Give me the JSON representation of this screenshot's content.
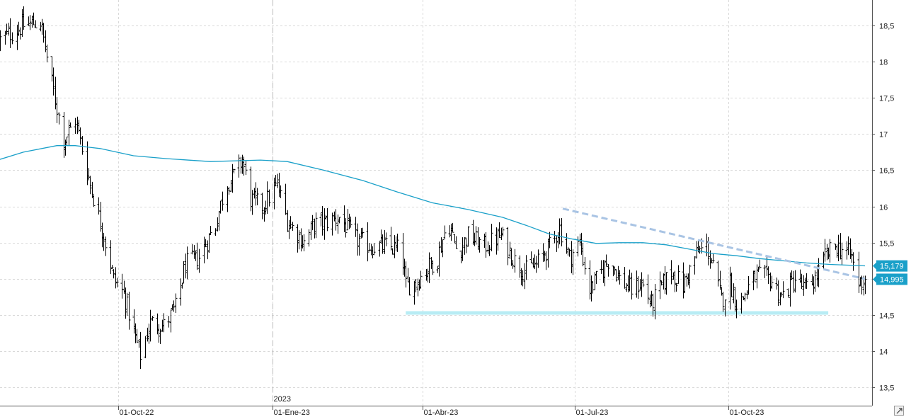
{
  "chart_data": {
    "type": "ohlc",
    "y_ticks": [
      "13,5",
      "14",
      "14,5",
      "15",
      "15,5",
      "16",
      "16,5",
      "17",
      "17,5",
      "18",
      "18,5"
    ],
    "y_tick_values": [
      13.5,
      14,
      14.5,
      15,
      15.5,
      16,
      16.5,
      17,
      17.5,
      18,
      18.5
    ],
    "x_ticks": [
      "01-Oct-22",
      "01-Ene-23",
      "01-Abr-23",
      "01-Jul-23",
      "01-Oct-23"
    ],
    "x_tick_dates": [
      "2022-10-01",
      "2023-01-01",
      "2023-04-01",
      "2023-07-01",
      "2023-10-01"
    ],
    "year_marker": {
      "label": "2023",
      "date": "2023-01-01"
    },
    "x_range": [
      "2022-07-22",
      "2023-12-22"
    ],
    "ylim": [
      13.25,
      18.85
    ],
    "grid": true,
    "series": [
      {
        "kind": "price-bars",
        "color": "#000000",
        "anchors": [
          [
            "2022-07-22",
            18.3
          ],
          [
            "2022-08-05",
            18.5
          ],
          [
            "2022-08-15",
            18.55
          ],
          [
            "2022-08-22",
            17.7
          ],
          [
            "2022-08-29",
            16.9
          ],
          [
            "2022-09-05",
            17.2
          ],
          [
            "2022-09-14",
            16.3
          ],
          [
            "2022-09-22",
            15.6
          ],
          [
            "2022-09-28",
            15.0
          ],
          [
            "2022-10-04",
            14.8
          ],
          [
            "2022-10-10",
            14.25
          ],
          [
            "2022-10-14",
            13.95
          ],
          [
            "2022-10-20",
            14.4
          ],
          [
            "2022-10-28",
            14.35
          ],
          [
            "2022-11-04",
            14.6
          ],
          [
            "2022-11-10",
            15.2
          ],
          [
            "2022-11-18",
            15.3
          ],
          [
            "2022-11-28",
            15.75
          ],
          [
            "2022-12-04",
            16.3
          ],
          [
            "2022-12-10",
            16.45
          ],
          [
            "2022-12-14",
            16.65
          ],
          [
            "2022-12-19",
            16.1
          ],
          [
            "2022-12-26",
            16.0
          ],
          [
            "2023-01-04",
            16.3
          ],
          [
            "2023-01-10",
            15.8
          ],
          [
            "2023-01-20",
            15.5
          ],
          [
            "2023-01-26",
            15.75
          ],
          [
            "2023-02-04",
            15.8
          ],
          [
            "2023-02-10",
            15.85
          ],
          [
            "2023-02-20",
            15.55
          ],
          [
            "2023-03-01",
            15.45
          ],
          [
            "2023-03-10",
            15.45
          ],
          [
            "2023-03-19",
            15.4
          ],
          [
            "2023-03-22",
            14.9
          ],
          [
            "2023-03-28",
            14.95
          ],
          [
            "2023-04-04",
            15.15
          ],
          [
            "2023-04-10",
            15.3
          ],
          [
            "2023-04-16",
            15.8
          ],
          [
            "2023-04-22",
            15.35
          ],
          [
            "2023-04-28",
            15.6
          ],
          [
            "2023-05-08",
            15.45
          ],
          [
            "2023-05-18",
            15.6
          ],
          [
            "2023-05-26",
            15.25
          ],
          [
            "2023-06-01",
            15.1
          ],
          [
            "2023-06-08",
            15.2
          ],
          [
            "2023-06-16",
            15.45
          ],
          [
            "2023-06-22",
            15.7
          ],
          [
            "2023-06-28",
            15.3
          ],
          [
            "2023-07-04",
            15.5
          ],
          [
            "2023-07-10",
            14.85
          ],
          [
            "2023-07-16",
            15.05
          ],
          [
            "2023-07-22",
            15.3
          ],
          [
            "2023-07-28",
            15.0
          ],
          [
            "2023-08-04",
            14.85
          ],
          [
            "2023-08-10",
            14.95
          ],
          [
            "2023-08-16",
            14.65
          ],
          [
            "2023-08-22",
            14.9
          ],
          [
            "2023-08-28",
            15.1
          ],
          [
            "2023-09-04",
            14.9
          ],
          [
            "2023-09-12",
            15.35
          ],
          [
            "2023-09-18",
            15.45
          ],
          [
            "2023-09-22",
            15.15
          ],
          [
            "2023-09-27",
            14.7
          ],
          [
            "2023-10-02",
            14.95
          ],
          [
            "2023-10-07",
            14.6
          ],
          [
            "2023-10-12",
            14.85
          ],
          [
            "2023-10-18",
            15.05
          ],
          [
            "2023-10-26",
            15.0
          ],
          [
            "2023-11-02",
            14.75
          ],
          [
            "2023-11-10",
            15.0
          ],
          [
            "2023-11-16",
            14.85
          ],
          [
            "2023-11-22",
            15.0
          ],
          [
            "2023-11-28",
            15.3
          ],
          [
            "2023-12-04",
            15.45
          ],
          [
            "2023-12-10",
            15.4
          ],
          [
            "2023-12-14",
            15.3
          ],
          [
            "2023-12-18",
            14.95
          ],
          [
            "2023-12-22",
            15.0
          ]
        ]
      },
      {
        "kind": "moving-average",
        "color": "#1aa0c9",
        "anchors": [
          [
            "2022-07-22",
            16.65
          ],
          [
            "2022-08-05",
            16.75
          ],
          [
            "2022-08-25",
            16.84
          ],
          [
            "2022-09-05",
            16.84
          ],
          [
            "2022-09-20",
            16.8
          ],
          [
            "2022-10-10",
            16.7
          ],
          [
            "2022-10-30",
            16.66
          ],
          [
            "2022-11-25",
            16.62
          ],
          [
            "2022-12-25",
            16.64
          ],
          [
            "2023-01-10",
            16.62
          ],
          [
            "2023-02-01",
            16.5
          ],
          [
            "2023-02-24",
            16.36
          ],
          [
            "2023-03-17",
            16.2
          ],
          [
            "2023-04-07",
            16.05
          ],
          [
            "2023-04-28",
            15.96
          ],
          [
            "2023-05-19",
            15.85
          ],
          [
            "2023-06-02",
            15.74
          ],
          [
            "2023-06-16",
            15.62
          ],
          [
            "2023-06-30",
            15.55
          ],
          [
            "2023-07-14",
            15.49
          ],
          [
            "2023-07-28",
            15.5
          ],
          [
            "2023-08-11",
            15.5
          ],
          [
            "2023-08-25",
            15.47
          ],
          [
            "2023-09-08",
            15.41
          ],
          [
            "2023-09-22",
            15.35
          ],
          [
            "2023-10-06",
            15.32
          ],
          [
            "2023-10-20",
            15.28
          ],
          [
            "2023-11-03",
            15.25
          ],
          [
            "2023-11-17",
            15.22
          ],
          [
            "2023-12-01",
            15.2
          ],
          [
            "2023-12-22",
            15.18
          ]
        ]
      }
    ],
    "annotations": [
      {
        "kind": "dashed-trendline",
        "color": "#a9c4e4",
        "from": [
          "2023-06-24",
          15.97
        ],
        "to": [
          "2023-12-22",
          15.0
        ]
      },
      {
        "kind": "horizontal-band",
        "color": "#b8ecf4",
        "from": [
          "2023-03-22",
          14.53
        ],
        "to": [
          "2023-11-30",
          14.53
        ]
      }
    ],
    "value_badges": [
      {
        "label": "15,179",
        "value": 15.179,
        "color": "#1aa0c9"
      },
      {
        "label": "14,995",
        "value": 14.995,
        "color": "#1aa0c9"
      }
    ]
  }
}
